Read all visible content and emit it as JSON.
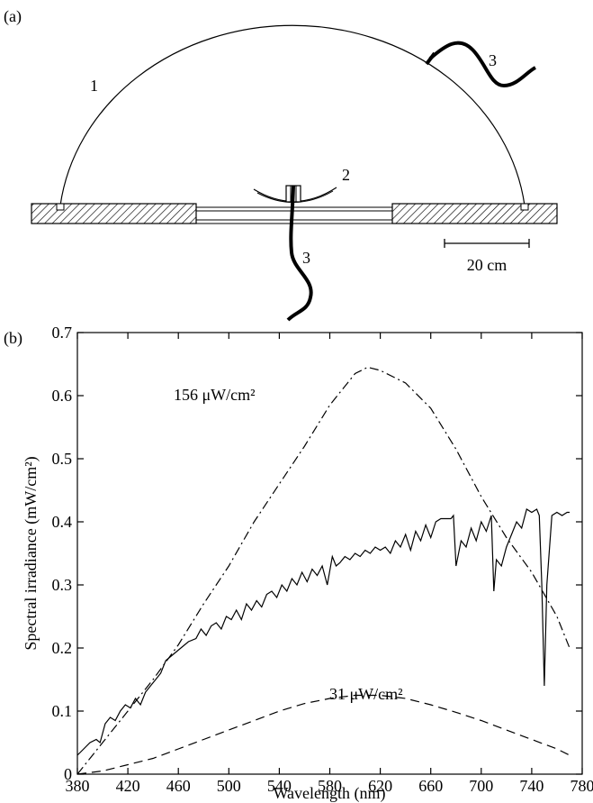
{
  "panel_a": {
    "panel_label": "(a)",
    "callouts": [
      "1",
      "2",
      "3",
      "3"
    ],
    "scale_bar_label": "20 cm"
  },
  "panel_b": {
    "panel_label": "(b)"
  },
  "chart_data": {
    "type": "line",
    "xlabel": "Wavelength (nm)",
    "ylabel": "Spectral irradiance (mW/cm²)",
    "xlim": [
      380,
      780
    ],
    "ylim": [
      0,
      0.7
    ],
    "x_ticks": [
      380,
      420,
      460,
      500,
      540,
      580,
      620,
      660,
      700,
      740,
      780
    ],
    "y_ticks": [
      0,
      0.1,
      0.2,
      0.3,
      0.4,
      0.5,
      0.6,
      0.7
    ],
    "y_tick_labels": [
      "0",
      "0.1",
      "0.2",
      "0.3",
      "0.4",
      "0.5",
      "0.6",
      "0.7"
    ],
    "grid": false,
    "annotations": [
      {
        "text": "156 μW/cm²",
        "series": "dash-dot"
      },
      {
        "text": "31 μW/cm²",
        "series": "dashed"
      }
    ],
    "series": [
      {
        "style": "solid",
        "x": [
          380,
          385,
          390,
          395,
          398,
          402,
          406,
          410,
          414,
          418,
          422,
          426,
          430,
          434,
          438,
          442,
          446,
          450,
          456,
          462,
          468,
          474,
          478,
          482,
          486,
          490,
          494,
          498,
          502,
          506,
          510,
          514,
          518,
          522,
          526,
          530,
          534,
          538,
          542,
          546,
          550,
          554,
          558,
          562,
          566,
          570,
          574,
          578,
          582,
          585,
          588,
          592,
          596,
          600,
          604,
          608,
          612,
          616,
          620,
          624,
          628,
          632,
          636,
          640,
          644,
          648,
          652,
          656,
          660,
          664,
          668,
          672,
          676,
          678,
          680,
          684,
          688,
          692,
          696,
          700,
          704,
          708,
          710,
          712,
          716,
          720,
          724,
          728,
          732,
          736,
          740,
          744,
          746,
          748,
          750,
          752,
          756,
          760,
          764,
          768,
          770
        ],
        "y": [
          0.03,
          0.04,
          0.05,
          0.055,
          0.05,
          0.08,
          0.09,
          0.085,
          0.1,
          0.11,
          0.105,
          0.12,
          0.11,
          0.13,
          0.14,
          0.15,
          0.16,
          0.18,
          0.19,
          0.2,
          0.21,
          0.215,
          0.23,
          0.22,
          0.235,
          0.24,
          0.23,
          0.25,
          0.245,
          0.26,
          0.245,
          0.27,
          0.26,
          0.275,
          0.265,
          0.285,
          0.29,
          0.28,
          0.3,
          0.29,
          0.31,
          0.3,
          0.32,
          0.305,
          0.325,
          0.315,
          0.33,
          0.3,
          0.345,
          0.33,
          0.335,
          0.345,
          0.34,
          0.35,
          0.345,
          0.355,
          0.35,
          0.36,
          0.355,
          0.36,
          0.35,
          0.37,
          0.36,
          0.38,
          0.355,
          0.385,
          0.37,
          0.395,
          0.375,
          0.4,
          0.405,
          0.405,
          0.405,
          0.41,
          0.33,
          0.37,
          0.36,
          0.39,
          0.37,
          0.4,
          0.385,
          0.41,
          0.29,
          0.34,
          0.33,
          0.36,
          0.38,
          0.4,
          0.39,
          0.42,
          0.415,
          0.42,
          0.41,
          0.3,
          0.14,
          0.3,
          0.41,
          0.415,
          0.41,
          0.415,
          0.415
        ]
      },
      {
        "style": "dash-dot",
        "x": [
          380,
          400,
          420,
          440,
          460,
          480,
          500,
          520,
          540,
          560,
          580,
          600,
          610,
          620,
          640,
          660,
          680,
          700,
          720,
          740,
          760,
          770
        ],
        "y": [
          0.0,
          0.05,
          0.1,
          0.15,
          0.205,
          0.27,
          0.33,
          0.4,
          0.46,
          0.52,
          0.585,
          0.635,
          0.645,
          0.64,
          0.62,
          0.58,
          0.515,
          0.44,
          0.375,
          0.32,
          0.25,
          0.2
        ]
      },
      {
        "style": "dashed",
        "x": [
          380,
          400,
          420,
          440,
          460,
          480,
          500,
          520,
          540,
          560,
          580,
          600,
          620,
          640,
          660,
          680,
          700,
          720,
          740,
          760,
          770
        ],
        "y": [
          0.0,
          0.005,
          0.015,
          0.025,
          0.04,
          0.055,
          0.07,
          0.085,
          0.1,
          0.112,
          0.12,
          0.125,
          0.125,
          0.12,
          0.11,
          0.098,
          0.085,
          0.07,
          0.055,
          0.04,
          0.03
        ]
      }
    ]
  }
}
